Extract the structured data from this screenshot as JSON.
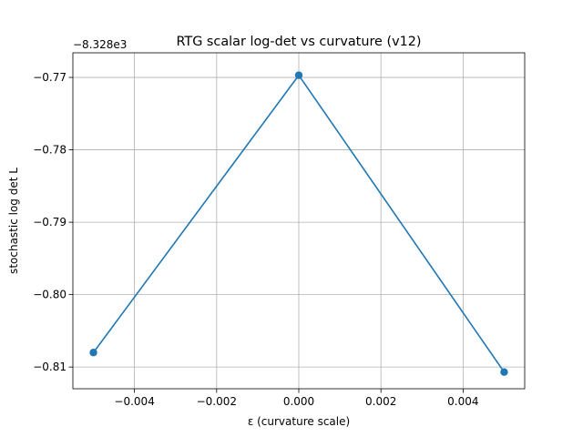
{
  "chart_data": {
    "type": "line",
    "title": "RTG scalar log-det vs curvature (v12)",
    "xlabel": "ε (curvature scale)",
    "ylabel": "stochastic log det L",
    "offset_text": "−8.328e3",
    "y_offset": -8328,
    "x": [
      -0.005,
      0.0,
      0.005
    ],
    "series": [
      {
        "values": [
          -0.808,
          -0.7697,
          -0.8107
        ],
        "color": "#1f77b4"
      }
    ],
    "xlim": [
      -0.0055,
      0.0055
    ],
    "ylim": [
      -0.813,
      -0.7666
    ],
    "xticks": [
      -0.004,
      -0.002,
      0.0,
      0.002,
      0.004
    ],
    "xtick_labels": [
      "−0.004",
      "−0.002",
      "0.000",
      "0.002",
      "0.004"
    ],
    "yticks": [
      -0.81,
      -0.8,
      -0.79,
      -0.78,
      -0.77
    ],
    "ytick_labels": [
      "−0.81",
      "−0.80",
      "−0.79",
      "−0.78",
      "−0.77"
    ],
    "grid": true,
    "marker": "circle"
  }
}
